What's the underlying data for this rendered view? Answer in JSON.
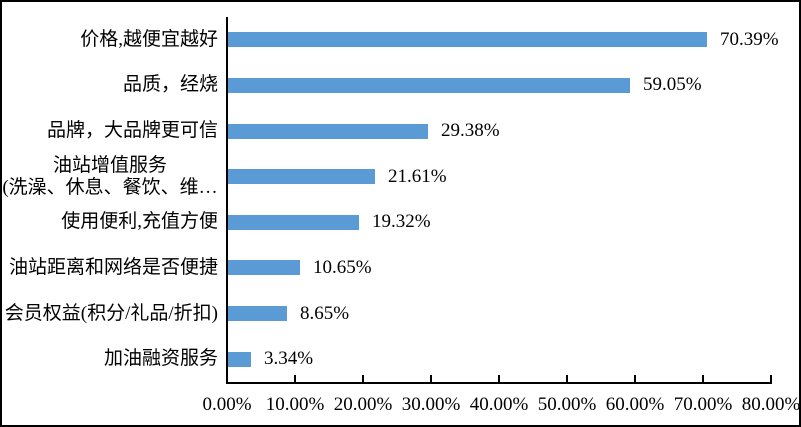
{
  "chart_data": {
    "type": "bar",
    "orientation": "horizontal",
    "title": "",
    "xlabel": "",
    "ylabel": "",
    "categories": [
      "价格,越便宜越好",
      "品质，经烧",
      "品牌，大品牌更可信",
      "油站增值服务\n(洗澡、休息、餐饮、维…",
      "使用便利,充值方便",
      "油站距离和网络是否便捷",
      "会员权益(积分/礼品/折扣)",
      "加油融资服务"
    ],
    "values": [
      70.39,
      59.05,
      29.38,
      21.61,
      19.32,
      10.65,
      8.65,
      3.34
    ],
    "value_labels": [
      "70.39%",
      "59.05%",
      "29.38%",
      "21.61%",
      "19.32%",
      "10.65%",
      "8.65%",
      "3.34%"
    ],
    "x_tick_labels": [
      "0.00%",
      "10.00%",
      "20.00%",
      "30.00%",
      "40.00%",
      "50.00%",
      "60.00%",
      "70.00%",
      "80.00%"
    ],
    "xlim": [
      0,
      80
    ],
    "grid": false,
    "legend": null,
    "bar_color": "#5B9BD5",
    "axis_color": "#000000",
    "text_color": "#000000",
    "background_color": "#ffffff"
  }
}
